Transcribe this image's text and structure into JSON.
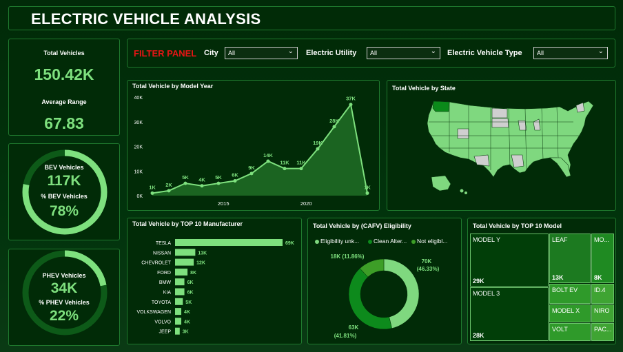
{
  "header": {
    "title": "ELECTRIC VEHICLE ANALYSIS"
  },
  "kpis": {
    "total_vehicles_label": "Total Vehicles",
    "total_vehicles_value": "150.42K",
    "avg_range_label": "Average Range",
    "avg_range_value": "67.83"
  },
  "bev": {
    "label": "BEV Vehicles",
    "value": "117K",
    "pct_label": "% BEV Vehicles",
    "pct_value": "78%",
    "fraction": 0.78
  },
  "phev": {
    "label": "PHEV Vehicles",
    "value": "34K",
    "pct_label": "% PHEV Vehicles",
    "pct_value": "22%",
    "fraction": 0.22
  },
  "filters": {
    "title": "FILTER PANEL",
    "city_label": "City",
    "city_value": "All",
    "utility_label": "Electric Utility",
    "utility_value": "All",
    "type_label": "Electric Vehicle Type",
    "type_value": "All",
    "chevron_icon": "chevron-down-icon"
  },
  "colors": {
    "accent": "#7ee07e",
    "filter_title": "#e61515",
    "panel_border": "#1f7a2e",
    "bar": "#7ee07e",
    "donut_light": "#7fd87f",
    "donut_mid": "#0d8a1c",
    "donut_dark": "#3d9e27"
  },
  "chart_data": [
    {
      "type": "area",
      "title": "Total Vehicle by Model Year",
      "x": [
        2010,
        2011,
        2012,
        2013,
        2014,
        2015,
        2016,
        2017,
        2018,
        2019,
        2020,
        2021,
        2022,
        2023,
        2024
      ],
      "values": [
        1000,
        2000,
        5000,
        4000,
        5000,
        6000,
        9000,
        14000,
        11000,
        11000,
        19000,
        28000,
        37000,
        1000
      ],
      "point_x": [
        2010,
        2011,
        2012,
        2013,
        2014,
        2015,
        2016,
        2017,
        2018,
        2019,
        2020,
        2021,
        2022,
        2023
      ],
      "labels": [
        "1K",
        "2K",
        "5K",
        "4K",
        "5K",
        "6K",
        "9K",
        "14K",
        "11K",
        "11K",
        "19K",
        "28K",
        "37K",
        "1K"
      ],
      "y_ticks": [
        "0K",
        "10K",
        "20K",
        "30K",
        "40K"
      ],
      "x_ticks": [
        "2015",
        "2020"
      ],
      "ylim": [
        0,
        40000
      ],
      "grid": false
    },
    {
      "type": "map",
      "title": "Total Vehicle by State"
    },
    {
      "type": "bar",
      "title": "Total Vehicle by TOP 10 Manufacturer",
      "categories": [
        "TESLA",
        "NISSAN",
        "CHEVROLET",
        "FORD",
        "BMW",
        "KIA",
        "TOYOTA",
        "VOLKSWAGEN",
        "VOLVO",
        "JEEP"
      ],
      "values": [
        69,
        13,
        12,
        8,
        6,
        6,
        5,
        4,
        4,
        3
      ],
      "labels": [
        "69K",
        "13K",
        "12K",
        "8K",
        "6K",
        "6K",
        "5K",
        "4K",
        "4K",
        "3K"
      ],
      "orientation": "horizontal"
    },
    {
      "type": "pie",
      "title": "Total Vehicle by (CAFV) Eligibility",
      "legend": [
        "Eligibility unk...",
        "Clean Alter...",
        "Not eligibl..."
      ],
      "values": [
        70,
        63,
        18
      ],
      "labels": [
        "70K",
        "63K",
        "18K (11.86%)"
      ],
      "pct_labels": [
        "(46.33%)",
        "(41.81%)",
        ""
      ]
    },
    {
      "type": "treemap",
      "title": "Total Vehicle by TOP 10 Model",
      "items": [
        {
          "name": "MODEL Y",
          "value": "29K"
        },
        {
          "name": "MODEL 3",
          "value": "28K"
        },
        {
          "name": "LEAF",
          "value": "13K"
        },
        {
          "name": "MO...",
          "value": "8K"
        },
        {
          "name": "BOLT EV",
          "value": ""
        },
        {
          "name": "ID.4",
          "value": ""
        },
        {
          "name": "MODEL X",
          "value": ""
        },
        {
          "name": "NIRO",
          "value": ""
        },
        {
          "name": "VOLT",
          "value": ""
        },
        {
          "name": "PAC...",
          "value": ""
        }
      ]
    }
  ]
}
